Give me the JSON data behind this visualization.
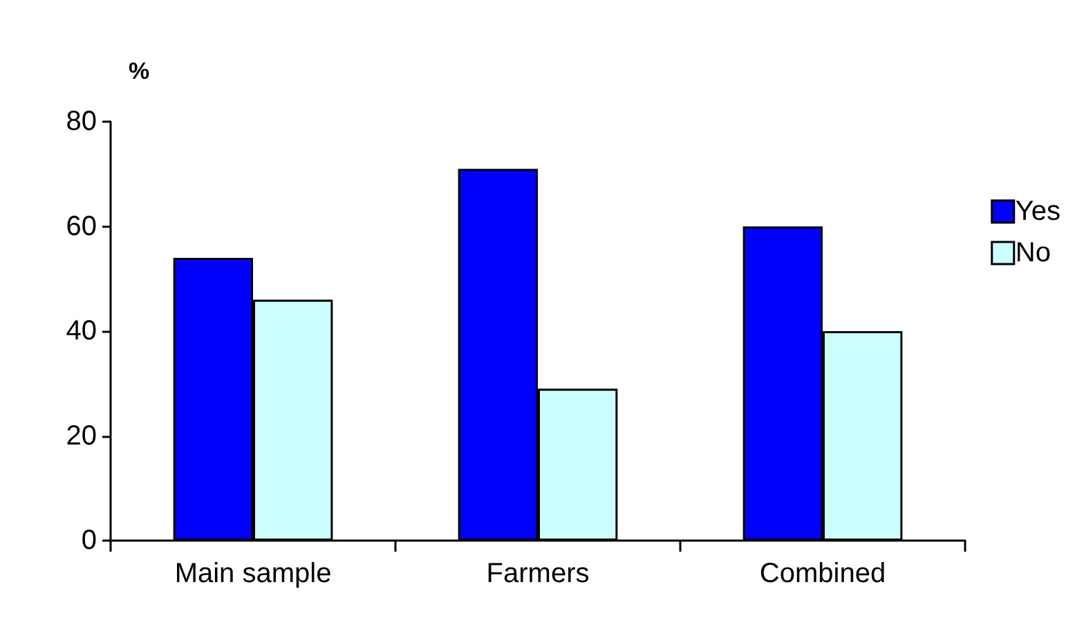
{
  "chart_data": {
    "type": "bar",
    "ylabel": "%",
    "categories": [
      "Main sample",
      "Farmers",
      "Combined"
    ],
    "series": [
      {
        "name": "Yes",
        "color": "#0000ff",
        "values": [
          54,
          71,
          60
        ]
      },
      {
        "name": "No",
        "color": "#ccffff",
        "values": [
          46,
          29,
          40
        ]
      }
    ],
    "ylim": [
      0,
      80
    ],
    "yticks": [
      0,
      20,
      40,
      60,
      80
    ],
    "grid": false,
    "legend": "right"
  }
}
